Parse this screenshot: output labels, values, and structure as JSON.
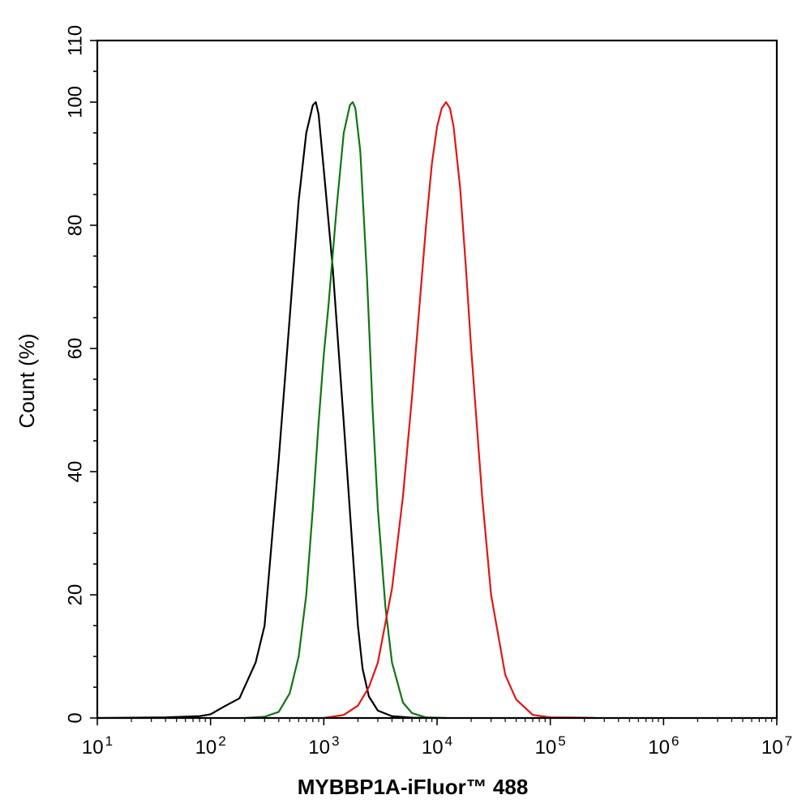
{
  "chart_data": {
    "type": "line",
    "title": "",
    "xlabel": "MYBBP1A-iFluor™ 488",
    "ylabel": "Count  (%)",
    "x_scale": "log",
    "xlim": [
      10,
      10000000
    ],
    "ylim": [
      0,
      110
    ],
    "x_ticks": [
      {
        "value": 10,
        "base": "10",
        "exp": "1"
      },
      {
        "value": 100,
        "base": "10",
        "exp": "2"
      },
      {
        "value": 1000,
        "base": "10",
        "exp": "3"
      },
      {
        "value": 10000,
        "base": "10",
        "exp": "4"
      },
      {
        "value": 100000,
        "base": "10",
        "exp": "5"
      },
      {
        "value": 1000000,
        "base": "10",
        "exp": "6"
      },
      {
        "value": 10000000,
        "base": "10",
        "exp": "7"
      }
    ],
    "y_ticks": [
      0,
      20,
      40,
      60,
      80,
      100,
      110
    ],
    "grid": false,
    "legend": "none",
    "series": [
      {
        "color": "#000000",
        "x": [
          10,
          40,
          80,
          100,
          130,
          180,
          250,
          300,
          400,
          500,
          600,
          700,
          800,
          850,
          900,
          1000,
          1200,
          1500,
          1800,
          2000,
          2200,
          2500,
          3000,
          4000,
          6000,
          10000
        ],
        "y": [
          0,
          0.1,
          0.3,
          0.6,
          1.8,
          3.2,
          9,
          15,
          42,
          65,
          84,
          95,
          99.5,
          100,
          98,
          89,
          73,
          48,
          27,
          15,
          8,
          3.5,
          1.2,
          0.3,
          0.05,
          0
        ]
      },
      {
        "color": "#127512",
        "x": [
          200,
          300,
          400,
          500,
          600,
          700,
          800,
          900,
          1000,
          1100,
          1300,
          1500,
          1700,
          1800,
          1900,
          2100,
          2400,
          2700,
          3000,
          3500,
          4000,
          5000,
          6000,
          8000,
          12000
        ],
        "y": [
          0,
          0.2,
          1,
          4,
          10,
          20,
          34,
          48,
          59,
          67,
          83,
          95,
          99.5,
          100,
          99,
          92,
          72,
          50,
          34,
          18,
          9,
          2.5,
          0.8,
          0.1,
          0
        ]
      },
      {
        "color": "#e01616",
        "x": [
          1000,
          1500,
          2000,
          2500,
          3000,
          4000,
          5000,
          6000,
          7000,
          8000,
          9000,
          10000,
          11000,
          12000,
          13000,
          14000,
          16000,
          18000,
          20000,
          25000,
          30000,
          40000,
          50000,
          70000,
          100000,
          200000,
          250000
        ],
        "y": [
          0,
          0.5,
          2,
          5,
          9,
          21,
          36,
          52,
          67,
          80,
          90,
          96,
          99,
          100,
          99,
          96,
          86,
          73,
          60,
          36,
          20,
          7,
          3,
          0.5,
          0.1,
          0.05,
          0
        ]
      }
    ]
  }
}
